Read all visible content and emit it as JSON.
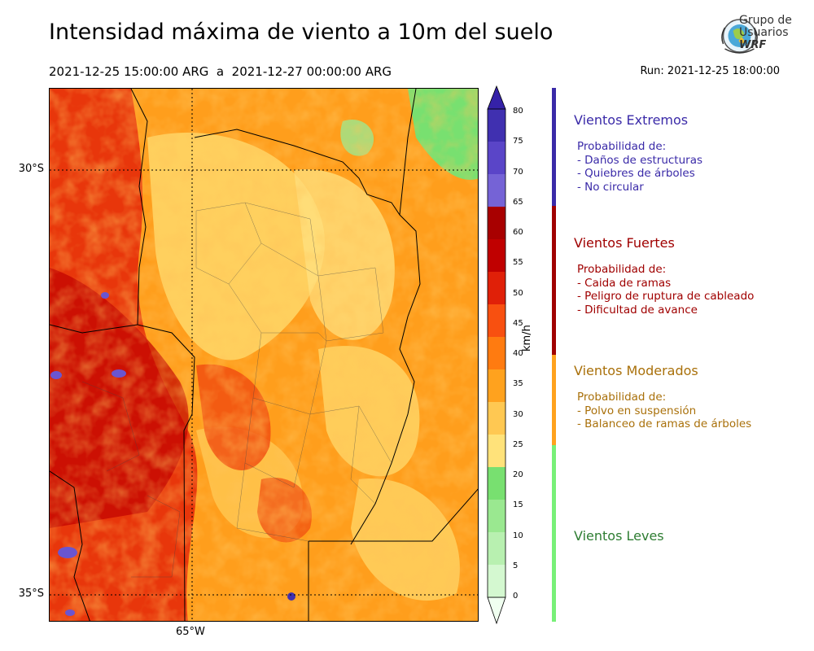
{
  "header": {
    "title": "Intensidad máxima de viento a 10m del suelo",
    "subtitle": "2021-12-25 15:00:00 ARG  a  2021-12-27 00:00:00 ARG",
    "run": "Run: 2021-12-25 18:00:00"
  },
  "logo": {
    "line1": "Grupo de",
    "line2": "Usuarios",
    "line3": "WRF",
    "icon": "globe-icon"
  },
  "map": {
    "lat_labels": [
      "30°S",
      "35°S"
    ],
    "lon_labels": [
      "65°W"
    ]
  },
  "colorbar": {
    "units": "km/h",
    "ticks": [
      "0",
      "5",
      "10",
      "15",
      "20",
      "25",
      "30",
      "35",
      "40",
      "45",
      "50",
      "55",
      "60",
      "65",
      "70",
      "75",
      "80"
    ],
    "colors": [
      "#f0fff0",
      "#d4f8d0",
      "#b8f0b0",
      "#9ae890",
      "#78e070",
      "#ffe27a",
      "#ffc852",
      "#ffa21e",
      "#ff7b10",
      "#f85010",
      "#e02008",
      "#c00000",
      "#a80000",
      "#7563d6",
      "#5a45c8",
      "#4030b0",
      "#3522a8"
    ]
  },
  "categories": [
    {
      "title": "Vientos Extremos",
      "color": "#3a2aa8",
      "desc": [
        " Probabilidad de:",
        " - Daños de estructuras",
        " - Quiebres de árboles",
        " - No circular"
      ]
    },
    {
      "title": "Vientos Fuertes",
      "color": "#a00000",
      "desc": [
        " Probabilidad de:",
        " - Caida de ramas",
        " - Peligro de ruptura de cableado",
        " - Dificultad de avance"
      ]
    },
    {
      "title": "Vientos Moderados",
      "color": "#a9700a",
      "desc": [
        " Probabilidad de:",
        " - Polvo en suspensión",
        " - Balanceo de ramas de árboles"
      ]
    },
    {
      "title": "Vientos Leves",
      "color": "#2e7d32",
      "desc": []
    }
  ],
  "bar_colors": {
    "extremos": "#3a2aa8",
    "fuertes": "#a00000",
    "moderados": "#ffa21e",
    "leves": "#78f078"
  }
}
